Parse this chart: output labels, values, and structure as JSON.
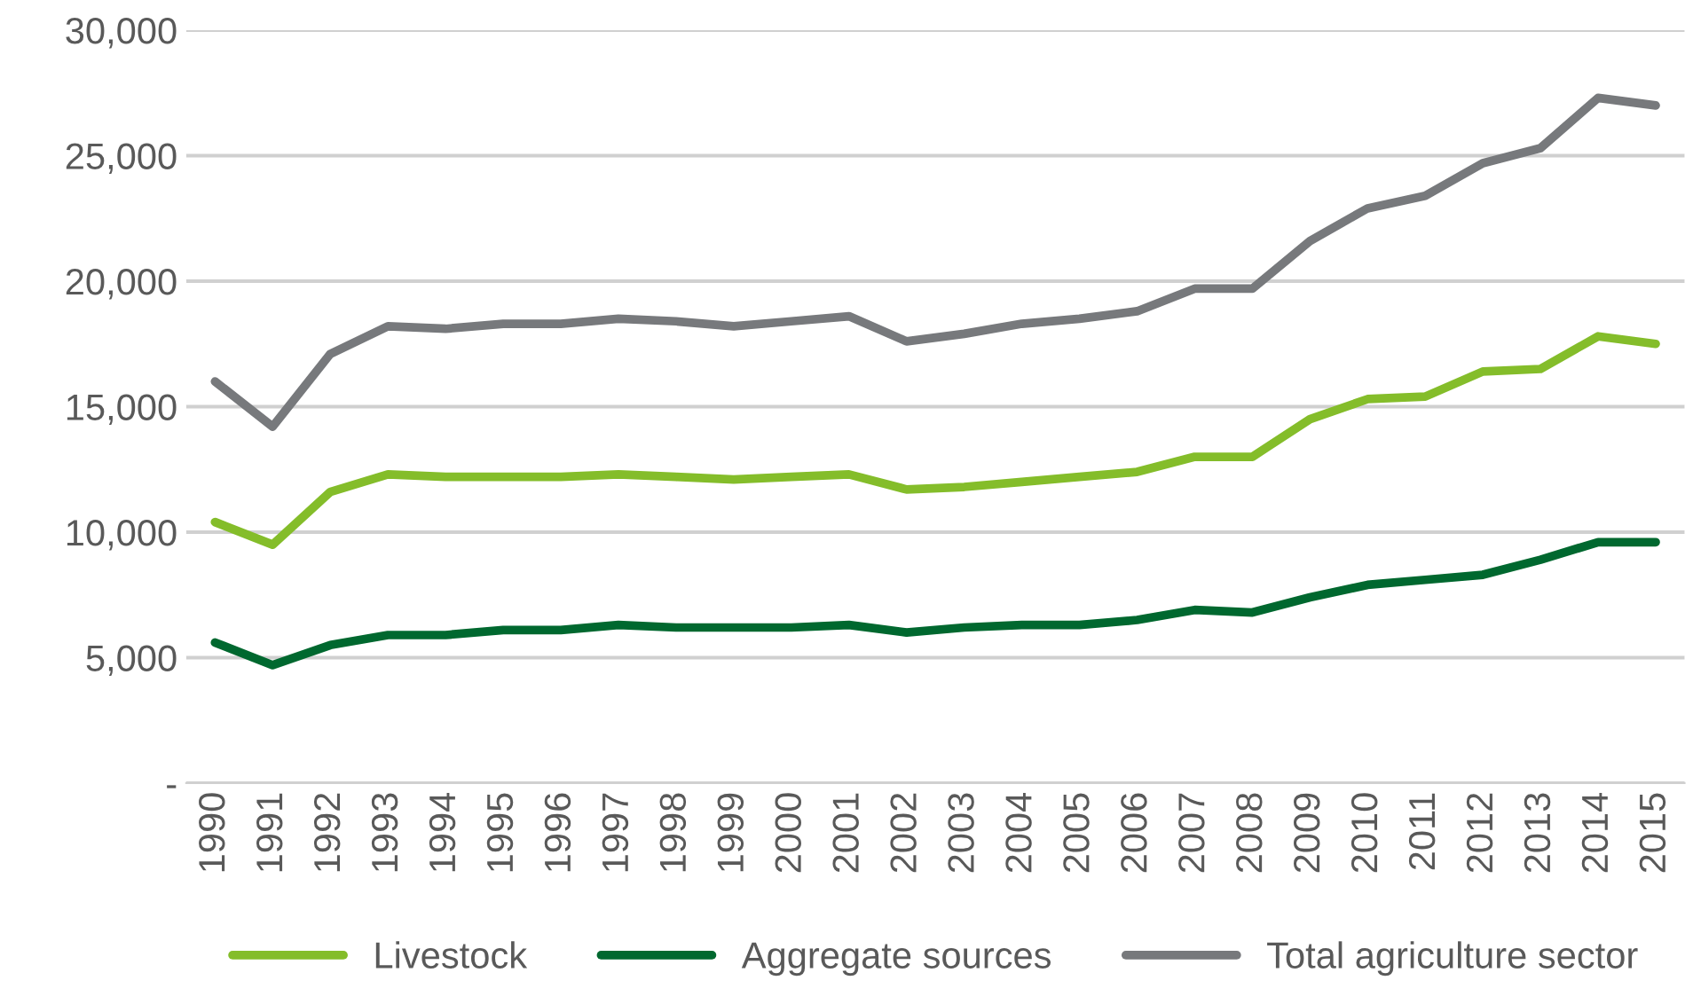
{
  "chart_data": {
    "type": "line",
    "categories": [
      "1990",
      "1991",
      "1992",
      "1993",
      "1994",
      "1995",
      "1996",
      "1997",
      "1998",
      "1999",
      "2000",
      "2001",
      "2002",
      "2003",
      "2004",
      "2005",
      "2006",
      "2007",
      "2008",
      "2009",
      "2010",
      "2011",
      "2012",
      "2013",
      "2014",
      "2015"
    ],
    "series": [
      {
        "name": "Livestock",
        "color": "#84bd2a",
        "values": [
          10400,
          9500,
          11600,
          12300,
          12200,
          12200,
          12200,
          12300,
          12200,
          12100,
          12200,
          12300,
          11700,
          11800,
          12000,
          12200,
          12400,
          13000,
          13000,
          14500,
          15300,
          15400,
          16400,
          16500,
          17800,
          17500
        ]
      },
      {
        "name": "Aggregate sources",
        "color": "#00682f",
        "values": [
          5600,
          4700,
          5500,
          5900,
          5900,
          6100,
          6100,
          6300,
          6200,
          6200,
          6200,
          6300,
          6000,
          6200,
          6300,
          6300,
          6500,
          6900,
          6800,
          7400,
          7900,
          8100,
          8300,
          8900,
          9600,
          9600
        ]
      },
      {
        "name": "Total agriculture sector",
        "color": "#77797c",
        "values": [
          16000,
          14200,
          17100,
          18200,
          18100,
          18300,
          18300,
          18500,
          18400,
          18200,
          18400,
          18600,
          17600,
          17900,
          18300,
          18500,
          18800,
          19700,
          19700,
          21600,
          22900,
          23400,
          24700,
          25300,
          27300,
          27000
        ]
      }
    ],
    "ylim": [
      0,
      30000
    ],
    "yticks": [
      {
        "value": 0,
        "label": "-"
      },
      {
        "value": 5000,
        "label": "5,000"
      },
      {
        "value": 10000,
        "label": "10,000"
      },
      {
        "value": 15000,
        "label": "15,000"
      },
      {
        "value": 20000,
        "label": "20,000"
      },
      {
        "value": 25000,
        "label": "25,000"
      },
      {
        "value": 30000,
        "label": "30,000"
      }
    ],
    "grid": "y",
    "legend": "bottom",
    "marker": "none",
    "line_style": "solid"
  }
}
